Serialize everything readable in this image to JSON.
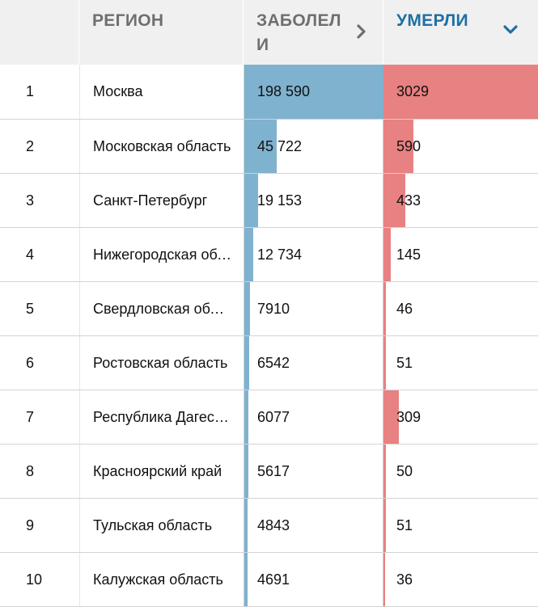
{
  "header": {
    "num": "",
    "region": "РЕГИОН",
    "cases": "ЗАБОЛЕЛИ",
    "deaths": "УМЕРЛИ"
  },
  "colors": {
    "cases_bar": "#7fb2ce",
    "deaths_bar": "#e88181",
    "active_header": "#1f6fa3"
  },
  "max": {
    "cases": 198590,
    "deaths": 3029
  },
  "rows": [
    {
      "rank": "1",
      "region": "Москва",
      "cases": 198590,
      "cases_label": "198 590",
      "deaths": 3029,
      "deaths_label": "3029"
    },
    {
      "rank": "2",
      "region": "Московская область",
      "cases": 45722,
      "cases_label": "45 722",
      "deaths": 590,
      "deaths_label": "590"
    },
    {
      "rank": "3",
      "region": "Санкт-Петербург",
      "cases": 19153,
      "cases_label": "19 153",
      "deaths": 433,
      "deaths_label": "433"
    },
    {
      "rank": "4",
      "region": "Нижегородская область",
      "cases": 12734,
      "cases_label": "12 734",
      "deaths": 145,
      "deaths_label": "145"
    },
    {
      "rank": "5",
      "region": "Свердловская область",
      "cases": 7910,
      "cases_label": "7910",
      "deaths": 46,
      "deaths_label": "46"
    },
    {
      "rank": "6",
      "region": "Ростовская область",
      "cases": 6542,
      "cases_label": "6542",
      "deaths": 51,
      "deaths_label": "51"
    },
    {
      "rank": "7",
      "region": "Республика Дагестан",
      "cases": 6077,
      "cases_label": "6077",
      "deaths": 309,
      "deaths_label": "309"
    },
    {
      "rank": "8",
      "region": "Красноярский край",
      "cases": 5617,
      "cases_label": "5617",
      "deaths": 50,
      "deaths_label": "50"
    },
    {
      "rank": "9",
      "region": "Тульская область",
      "cases": 4843,
      "cases_label": "4843",
      "deaths": 51,
      "deaths_label": "51"
    },
    {
      "rank": "10",
      "region": "Калужская область",
      "cases": 4691,
      "cases_label": "4691",
      "deaths": 36,
      "deaths_label": "36"
    }
  ]
}
